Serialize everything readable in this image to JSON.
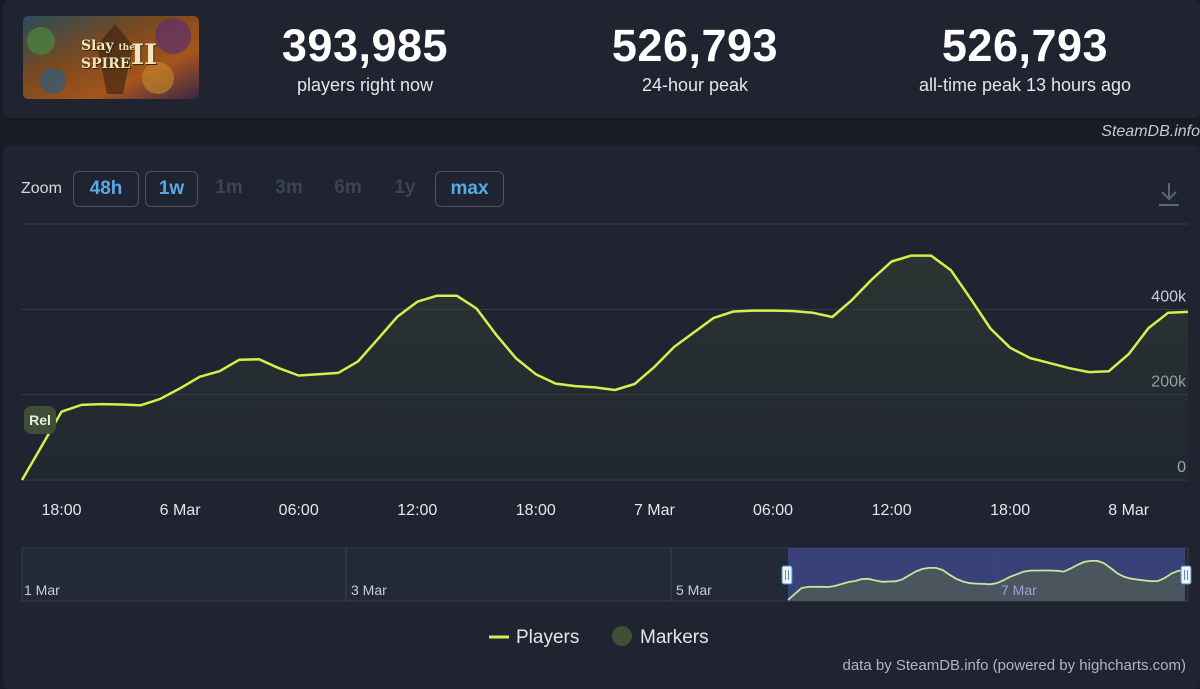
{
  "stats": [
    {
      "value": "393,985",
      "label": "players right now"
    },
    {
      "value": "526,793",
      "label": "24-hour peak"
    },
    {
      "value": "526,793",
      "label": "all-time peak 13 hours ago"
    }
  ],
  "cover": {
    "line1": "Slay",
    "small": "the",
    "line2": "SPIRE",
    "numeral": "II"
  },
  "credit_top": "SteamDB.info",
  "zoom": {
    "label": "Zoom",
    "buttons": [
      {
        "label": "48h",
        "state": "active"
      },
      {
        "label": "1w",
        "state": "active"
      },
      {
        "label": "1m",
        "state": "disabled"
      },
      {
        "label": "3m",
        "state": "disabled"
      },
      {
        "label": "6m",
        "state": "disabled"
      },
      {
        "label": "1y",
        "state": "disabled"
      },
      {
        "label": "max",
        "state": "active"
      }
    ]
  },
  "legend": {
    "players": "Players",
    "markers": "Markers"
  },
  "footer_credit": "data by SteamDB.info (powered by highcharts.com)",
  "colors": {
    "line": "#d4f04c",
    "background": "#1f2430",
    "accent": "#56a9e6",
    "marker": "#3f4f35"
  },
  "chart_data": {
    "type": "line",
    "series": [
      {
        "name": "Players",
        "values": [
          [
            "5 Mar 16:00",
            0
          ],
          [
            "5 Mar 17:00",
            80000
          ],
          [
            "5 Mar 18:00",
            160000
          ],
          [
            "5 Mar 19:00",
            176000
          ],
          [
            "5 Mar 20:00",
            178000
          ],
          [
            "5 Mar 21:00",
            177000
          ],
          [
            "5 Mar 22:00",
            175000
          ],
          [
            "5 Mar 23:00",
            190000
          ],
          [
            "6 Mar 00:00",
            215000
          ],
          [
            "6 Mar 01:00",
            242000
          ],
          [
            "6 Mar 02:00",
            255000
          ],
          [
            "6 Mar 03:00",
            282000
          ],
          [
            "6 Mar 04:00",
            283000
          ],
          [
            "6 Mar 05:00",
            262000
          ],
          [
            "6 Mar 06:00",
            245000
          ],
          [
            "6 Mar 07:00",
            248000
          ],
          [
            "6 Mar 08:00",
            251000
          ],
          [
            "6 Mar 09:00",
            278000
          ],
          [
            "6 Mar 10:00",
            330000
          ],
          [
            "6 Mar 11:00",
            383000
          ],
          [
            "6 Mar 12:00",
            418000
          ],
          [
            "6 Mar 13:00",
            432000
          ],
          [
            "6 Mar 14:00",
            432000
          ],
          [
            "6 Mar 15:00",
            402000
          ],
          [
            "6 Mar 16:00",
            340000
          ],
          [
            "6 Mar 17:00",
            285000
          ],
          [
            "6 Mar 18:00",
            248000
          ],
          [
            "6 Mar 19:00",
            226000
          ],
          [
            "6 Mar 20:00",
            220000
          ],
          [
            "6 Mar 21:00",
            217000
          ],
          [
            "6 Mar 22:00",
            211000
          ],
          [
            "6 Mar 23:00",
            225000
          ],
          [
            "7 Mar 00:00",
            265000
          ],
          [
            "7 Mar 01:00",
            312000
          ],
          [
            "7 Mar 02:00",
            346000
          ],
          [
            "7 Mar 03:00",
            380000
          ],
          [
            "7 Mar 04:00",
            395000
          ],
          [
            "7 Mar 05:00",
            397000
          ],
          [
            "7 Mar 06:00",
            397000
          ],
          [
            "7 Mar 07:00",
            396000
          ],
          [
            "7 Mar 08:00",
            392000
          ],
          [
            "7 Mar 09:00",
            382000
          ],
          [
            "7 Mar 10:00",
            422000
          ],
          [
            "7 Mar 11:00",
            470000
          ],
          [
            "7 Mar 12:00",
            512000
          ],
          [
            "7 Mar 13:00",
            526000
          ],
          [
            "7 Mar 14:00",
            526000
          ],
          [
            "7 Mar 15:00",
            492000
          ],
          [
            "7 Mar 16:00",
            425000
          ],
          [
            "7 Mar 17:00",
            355000
          ],
          [
            "7 Mar 18:00",
            310000
          ],
          [
            "7 Mar 19:00",
            286000
          ],
          [
            "7 Mar 20:00",
            274000
          ],
          [
            "7 Mar 21:00",
            262000
          ],
          [
            "7 Mar 22:00",
            253000
          ],
          [
            "7 Mar 23:00",
            255000
          ],
          [
            "8 Mar 00:00",
            295000
          ],
          [
            "8 Mar 01:00",
            356000
          ],
          [
            "8 Mar 02:00",
            392000
          ],
          [
            "8 Mar 03:00",
            394000
          ]
        ]
      }
    ],
    "ylim": [
      0,
      600000
    ],
    "y_ticks": [
      "0",
      "200k",
      "400k"
    ],
    "x_ticks": [
      "18:00",
      "6 Mar",
      "06:00",
      "12:00",
      "18:00",
      "7 Mar",
      "06:00",
      "12:00",
      "18:00",
      "8 Mar"
    ],
    "markers": [
      {
        "x": "5 Mar 16:00",
        "label": "Rel"
      }
    ],
    "navigator": {
      "date_labels": [
        "1 Mar",
        "3 Mar",
        "5 Mar",
        "7 Mar"
      ],
      "selection": [
        "5 Mar 16:00",
        "8 Mar 03:00"
      ]
    },
    "grid": true,
    "legend_position": "bottom-center"
  }
}
